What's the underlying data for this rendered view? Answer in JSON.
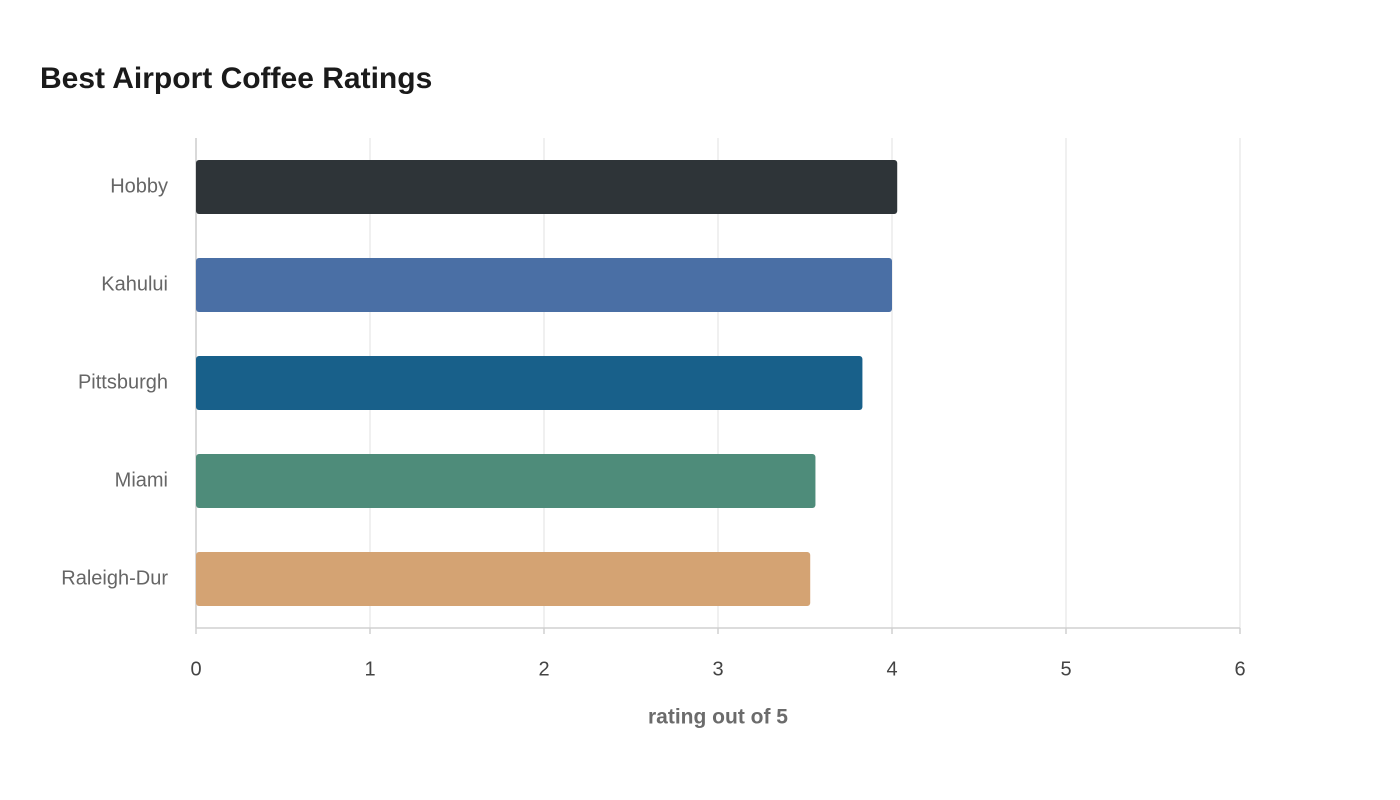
{
  "chart_data": {
    "type": "hbar",
    "title": "Best Airport Coffee Ratings",
    "x_label": "rating out of 5",
    "categories": [
      "Hobby",
      "Kahului",
      "Pittsburgh",
      "Miami",
      "Raleigh-Dur"
    ],
    "values": [
      4.03,
      4.0,
      3.83,
      3.56,
      3.53
    ],
    "colors": [
      "#2e3438",
      "#4a6fa5",
      "#18608a",
      "#4e8c7a",
      "#d4a373"
    ],
    "xlim": [
      0,
      6
    ],
    "xticks": [
      0,
      1,
      2,
      3,
      4,
      5,
      6
    ],
    "grid": true
  }
}
